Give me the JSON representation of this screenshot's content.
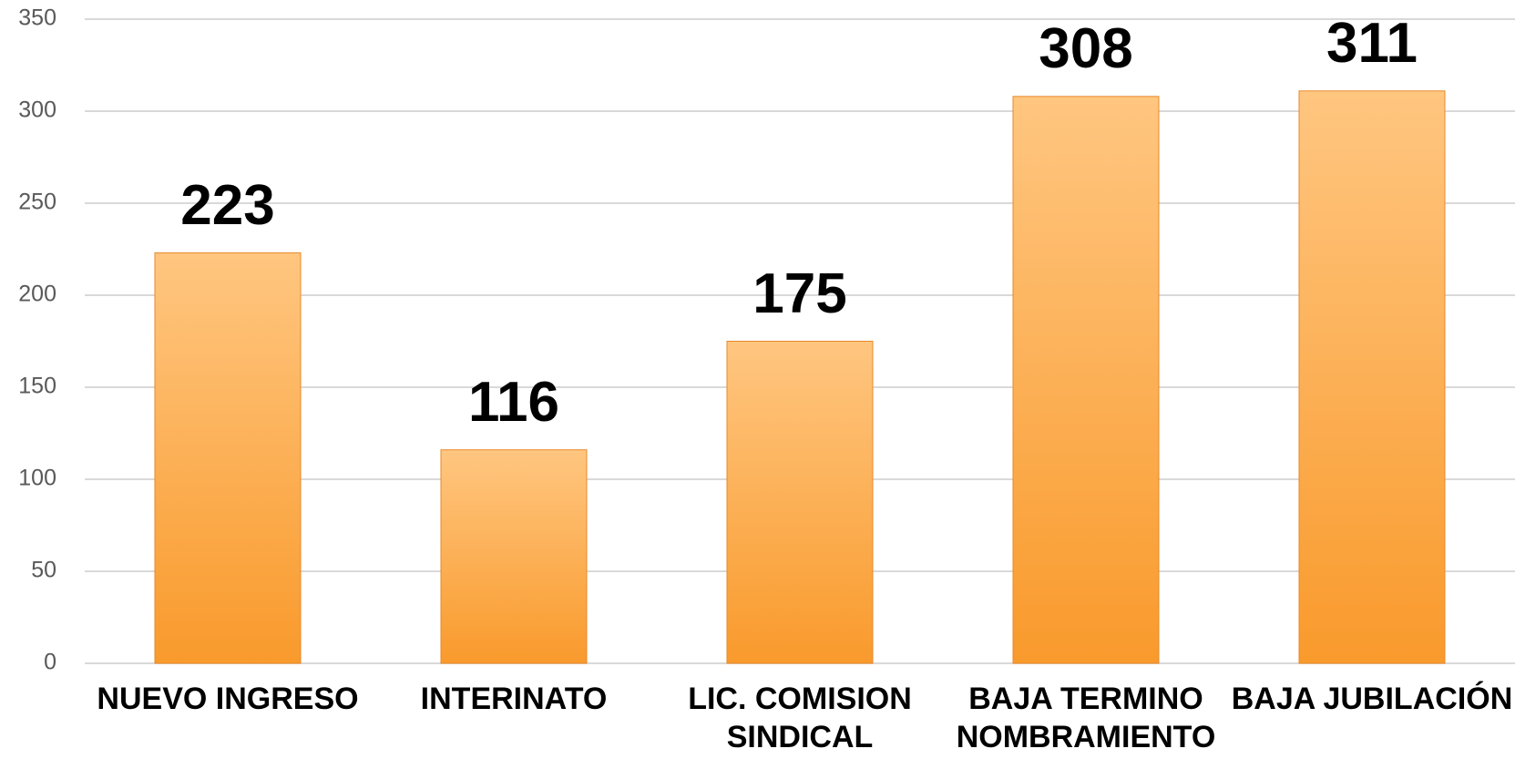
{
  "chart_data": {
    "type": "bar",
    "categories": [
      "NUEVO INGRESO",
      "INTERINATO",
      "LIC. COMISION SINDICAL",
      "BAJA TERMINO NOMBRAMIENTO",
      "BAJA JUBILACIÓN"
    ],
    "values": [
      223,
      116,
      175,
      308,
      311
    ],
    "color": "#f99a2c",
    "ylim": [
      0,
      350
    ],
    "yticks": [
      0,
      50,
      100,
      150,
      200,
      250,
      300,
      350
    ],
    "grid": true
  }
}
